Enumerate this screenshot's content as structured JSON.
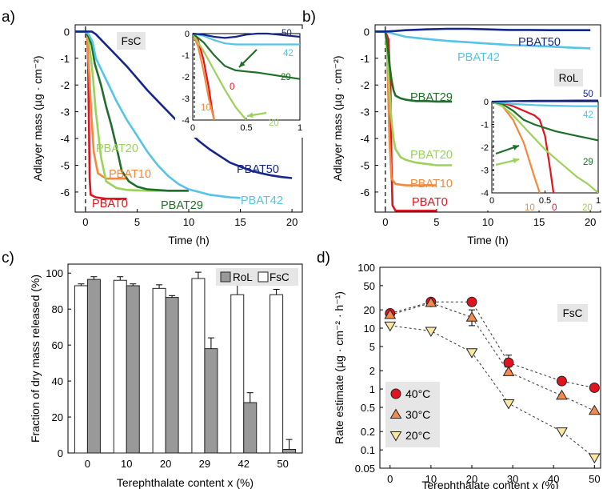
{
  "chart_data": [
    {
      "panel": "a)",
      "type": "line",
      "tag": "FsC",
      "xlabel": "Time (h)",
      "ylabel": "Adlayer mass (µg · cm⁻²)",
      "xlim": [
        -1,
        21
      ],
      "ylim": [
        -6.75,
        0.25
      ],
      "xticks": [
        0,
        5,
        10,
        15,
        20
      ],
      "yticks": [
        0,
        -1,
        -2,
        -3,
        -4,
        -5,
        -6
      ],
      "series": [
        {
          "name": "PBAT0",
          "label": "PBAT0",
          "color": "#e0141e",
          "x": [
            -1,
            0,
            0.15,
            0.25,
            0.32,
            0.4,
            0.5,
            1,
            2,
            3,
            4
          ],
          "y": [
            0,
            0,
            0,
            -1,
            -3,
            -5.5,
            -6.1,
            -6.2,
            -6.25,
            -6.25,
            -6.25
          ]
        },
        {
          "name": "PBAT10",
          "label": "PBAT10",
          "color": "#f5883a",
          "x": [
            -1,
            0,
            0.1,
            0.2,
            0.35,
            0.55,
            0.8,
            1.2,
            2,
            3,
            4
          ],
          "y": [
            0,
            0,
            0,
            -0.5,
            -1.5,
            -3,
            -4.5,
            -5.3,
            -5.5,
            -5.5,
            -5.5
          ]
        },
        {
          "name": "PBAT20",
          "label": "PBAT20",
          "color": "#9bd25a",
          "x": [
            -1,
            0,
            0.2,
            0.4,
            0.7,
            1,
            1.5,
            2,
            3,
            4,
            6,
            8,
            10
          ],
          "y": [
            0,
            0,
            -0.1,
            -0.6,
            -1.6,
            -3,
            -4.7,
            -5.6,
            -5.85,
            -5.92,
            -5.95,
            -5.95,
            -5.95
          ]
        },
        {
          "name": "PBAT29",
          "label": "PBAT29",
          "color": "#1f6e2a",
          "x": [
            -1,
            0,
            0.3,
            0.6,
            0.9,
            1.5,
            2,
            2.5,
            3,
            3.5,
            4.2,
            5,
            6,
            8,
            10
          ],
          "y": [
            0,
            0,
            -0.2,
            -0.5,
            -1.2,
            -2,
            -2.8,
            -3.5,
            -4.3,
            -5.2,
            -5.6,
            -5.8,
            -5.9,
            -5.95,
            -5.95
          ]
        },
        {
          "name": "PBAT42",
          "label": "PBAT42",
          "color": "#55c4e6",
          "x": [
            -1,
            0,
            0.3,
            0.7,
            1,
            2,
            3,
            4,
            5,
            6,
            7,
            8,
            9,
            10,
            11,
            12,
            13,
            14,
            15
          ],
          "y": [
            0,
            0,
            -0.1,
            -0.4,
            -1,
            -1.8,
            -2.6,
            -3.3,
            -3.9,
            -4.5,
            -5,
            -5.4,
            -5.7,
            -5.9,
            -6,
            -6.1,
            -6.15,
            -6.2,
            -6.22
          ]
        },
        {
          "name": "PBAT50",
          "label": "PBAT50",
          "color": "#15268a",
          "x": [
            -1,
            0,
            0.3,
            0.6,
            1,
            2,
            3,
            4,
            5,
            6,
            7,
            8,
            9,
            10,
            11,
            12,
            13,
            14,
            15,
            16,
            17,
            18,
            19,
            20
          ],
          "y": [
            0,
            0,
            0,
            0,
            -0.1,
            -0.5,
            -0.9,
            -1.3,
            -1.75,
            -2.2,
            -2.6,
            -3,
            -3.4,
            -3.75,
            -4.1,
            -4.4,
            -4.65,
            -4.9,
            -5.05,
            -5.2,
            -5.3,
            -5.38,
            -5.44,
            -5.48
          ]
        }
      ],
      "inset": {
        "xlim": [
          0,
          1
        ],
        "ylim": [
          -4,
          0
        ],
        "xticks": [
          "0",
          "0.5",
          "1"
        ],
        "yticks": [
          "0",
          "-1",
          "-2",
          "-3",
          "-4"
        ],
        "labels": [
          "0",
          "10",
          "20",
          "29",
          "42",
          "50"
        ],
        "series": [
          {
            "name": "PBAT0",
            "color": "#e0141e",
            "x": [
              0,
              0.05,
              0.1,
              0.15,
              0.18,
              0.2
            ],
            "y": [
              0,
              -0.3,
              -1.2,
              -2.5,
              -3.5,
              -4
            ]
          },
          {
            "name": "PBAT10",
            "color": "#f5883a",
            "x": [
              0,
              0.05,
              0.1,
              0.15,
              0.2
            ],
            "y": [
              0,
              -0.6,
              -1.7,
              -3,
              -4
            ]
          },
          {
            "name": "PBAT20",
            "color": "#9bd25a",
            "x": [
              0,
              0.1,
              0.2,
              0.3,
              0.4,
              0.5
            ],
            "y": [
              0,
              -0.8,
              -1.7,
              -2.6,
              -3.4,
              -4
            ]
          },
          {
            "name": "PBAT29",
            "color": "#1f6e2a",
            "x": [
              0,
              0.1,
              0.2,
              0.3,
              0.4,
              0.5,
              0.6,
              0.8,
              1
            ],
            "y": [
              0,
              -0.4,
              -1,
              -1.5,
              -1.7,
              -1.75,
              -1.8,
              -1.95,
              -2.1
            ]
          },
          {
            "name": "PBAT42",
            "color": "#55c4e6",
            "x": [
              0,
              0.1,
              0.2,
              0.3,
              0.4,
              0.6,
              0.8,
              1
            ],
            "y": [
              0,
              -0.1,
              -0.3,
              -0.45,
              -0.5,
              -0.5,
              -0.5,
              -0.5
            ]
          },
          {
            "name": "PBAT50",
            "color": "#15268a",
            "x": [
              0,
              0.1,
              0.2,
              0.3,
              0.4,
              0.5,
              0.6,
              0.7,
              0.8,
              0.9,
              1
            ],
            "y": [
              0,
              -0.05,
              -0.15,
              -0.2,
              -0.15,
              -0.05,
              0,
              0,
              -0.05,
              -0.1,
              -0.15
            ]
          }
        ]
      }
    },
    {
      "panel": "b)",
      "type": "line",
      "tag": "RoL",
      "xlabel": "Time (h)",
      "ylabel": "Adlayer mass (µg · cm⁻²)",
      "xlim": [
        -1,
        21
      ],
      "ylim": [
        -6.75,
        0.25
      ],
      "xticks": [
        0,
        5,
        10,
        15,
        20
      ],
      "yticks": [
        0,
        -1,
        -2,
        -3,
        -4,
        -5,
        -6
      ],
      "series": [
        {
          "name": "PBAT0",
          "label": "PBAT0",
          "color": "#e0141e",
          "x": [
            -1,
            0,
            0.3,
            0.5,
            0.6,
            0.7,
            1,
            2,
            3,
            4,
            5
          ],
          "y": [
            0,
            0,
            -0.3,
            -2,
            -5,
            -6.5,
            -6.7,
            -6.7,
            -6.7,
            -6.7,
            -6.7
          ]
        },
        {
          "name": "PBAT10",
          "label": "PBAT10",
          "color": "#f5883a",
          "x": [
            -1,
            0,
            0.15,
            0.25,
            0.4,
            0.6,
            1,
            2,
            3,
            4,
            5
          ],
          "y": [
            0,
            0,
            -0.4,
            -1.8,
            -4,
            -5.5,
            -5.7,
            -5.75,
            -5.75,
            -5.75,
            -5.75
          ]
        },
        {
          "name": "PBAT20",
          "label": "PBAT20",
          "color": "#9bd25a",
          "x": [
            -1,
            0,
            0.2,
            0.4,
            0.6,
            0.8,
            1,
            1.5,
            2,
            3,
            4,
            5,
            6,
            6.5
          ],
          "y": [
            0,
            0,
            -1,
            -2.2,
            -3.3,
            -4,
            -4.4,
            -4.7,
            -4.8,
            -4.9,
            -4.95,
            -5,
            -5,
            -5
          ]
        },
        {
          "name": "PBAT29",
          "label": "PBAT29",
          "color": "#1f6e2a",
          "x": [
            -1,
            0,
            0.2,
            0.4,
            0.6,
            0.8,
            1,
            1.5,
            2,
            3,
            4,
            5,
            6,
            6.5
          ],
          "y": [
            0,
            0,
            -0.5,
            -1.2,
            -1.8,
            -2.2,
            -2.4,
            -2.5,
            -2.55,
            -2.6,
            -2.6,
            -2.62,
            -2.62,
            -2.62
          ]
        },
        {
          "name": "PBAT42",
          "label": "PBAT42",
          "color": "#55c4e6",
          "x": [
            -1,
            0,
            1,
            2,
            4,
            6,
            8,
            10,
            12,
            14,
            16,
            18,
            20
          ],
          "y": [
            0,
            0,
            -0.1,
            -0.2,
            -0.28,
            -0.35,
            -0.4,
            -0.45,
            -0.5,
            -0.53,
            -0.56,
            -0.6,
            -0.63
          ]
        },
        {
          "name": "PBAT50",
          "label": "PBAT50",
          "color": "#15268a",
          "x": [
            -1,
            0,
            1,
            2,
            4,
            6,
            8,
            10,
            12,
            14,
            16,
            18,
            20
          ],
          "y": [
            0,
            0,
            0.02,
            0.05,
            0.08,
            0.1,
            0.1,
            0.08,
            0.06,
            0.06,
            0.05,
            0.05,
            0.05
          ]
        }
      ],
      "inset": {
        "xlim": [
          0,
          1
        ],
        "ylim": [
          -4,
          0
        ],
        "xticks": [
          "0",
          "0.5",
          "1"
        ],
        "yticks": [
          "0",
          "-1",
          "-2",
          "-3",
          "-4"
        ],
        "labels": [
          "0",
          "10",
          "20",
          "29",
          "42",
          "50"
        ],
        "series": [
          {
            "name": "PBAT0",
            "color": "#e0141e",
            "x": [
              0,
              0.1,
              0.2,
              0.3,
              0.4,
              0.45,
              0.5,
              0.55,
              0.58
            ],
            "y": [
              0,
              -0.05,
              -0.2,
              -0.4,
              -0.6,
              -0.8,
              -1.5,
              -3,
              -4
            ]
          },
          {
            "name": "PBAT10",
            "color": "#f5883a",
            "x": [
              0,
              0.1,
              0.2,
              0.3,
              0.4,
              0.45
            ],
            "y": [
              0,
              -0.2,
              -0.8,
              -1.8,
              -3.3,
              -4
            ]
          },
          {
            "name": "PBAT20",
            "color": "#9bd25a",
            "x": [
              0,
              0.1,
              0.2,
              0.3,
              0.4,
              0.5,
              0.6,
              0.7,
              0.8,
              0.9,
              1
            ],
            "y": [
              0,
              -0.2,
              -0.6,
              -1.1,
              -1.6,
              -2.1,
              -2.5,
              -2.9,
              -3.3,
              -3.6,
              -4
            ]
          },
          {
            "name": "PBAT29",
            "color": "#1f6e2a",
            "x": [
              0,
              0.1,
              0.2,
              0.3,
              0.4,
              0.5,
              0.6,
              0.7,
              0.8,
              0.9,
              1
            ],
            "y": [
              0,
              -0.1,
              -0.4,
              -0.8,
              -1,
              -1.15,
              -1.3,
              -1.4,
              -1.5,
              -1.6,
              -1.7
            ]
          },
          {
            "name": "PBAT42",
            "color": "#55c4e6",
            "x": [
              0,
              0.2,
              0.4,
              0.6,
              0.8,
              1
            ],
            "y": [
              0,
              -0.1,
              -0.15,
              -0.18,
              -0.2,
              -0.2
            ]
          },
          {
            "name": "PBAT50",
            "color": "#15268a",
            "x": [
              0,
              0.2,
              0.4,
              0.6,
              0.8,
              1
            ],
            "y": [
              0,
              0.02,
              0.04,
              0.04,
              0.05,
              0.05
            ]
          }
        ]
      }
    },
    {
      "panel": "c)",
      "type": "bar",
      "xlabel": "Terephthalate content x (%)",
      "ylabel": "Fraction of dry mass released (%)",
      "ylim": [
        0,
        105
      ],
      "yticks": [
        0,
        20,
        40,
        60,
        80,
        100
      ],
      "categories": [
        "0",
        "10",
        "20",
        "29",
        "42",
        "50"
      ],
      "legend": [
        "RoL",
        "FsC"
      ],
      "series": [
        {
          "name": "FsC",
          "color": "#ffffff",
          "values": [
            93,
            96,
            91.5,
            97,
            88,
            88
          ],
          "errors": [
            1,
            2,
            2,
            3.5,
            8,
            3
          ]
        },
        {
          "name": "RoL",
          "color": "#999999",
          "values": [
            96.5,
            93,
            86.5,
            58,
            28,
            2
          ],
          "errors": [
            1.5,
            1,
            1,
            6,
            5.5,
            5.5
          ]
        }
      ]
    },
    {
      "panel": "d)",
      "type": "scatter",
      "tag": "FsC",
      "xlabel": "Terephthalate content x (%)",
      "ylabel": "Rate estimate (µg · cm⁻² · h⁻¹)",
      "yscale": "log",
      "ylim": [
        0.05,
        100
      ],
      "xticks": [
        0,
        10,
        20,
        30,
        40,
        50
      ],
      "yticks": [
        "100",
        "50",
        "20",
        "10",
        "5",
        "2",
        "1",
        "0.5",
        "0.2",
        "0.1",
        "0.05"
      ],
      "x": [
        0,
        10,
        20,
        29,
        42,
        50
      ],
      "series": [
        {
          "name": "40°C",
          "label": "40°C",
          "marker": "circle",
          "color": "#e0141e",
          "values": [
            17.5,
            27,
            27,
            2.7,
            1.35,
            1.05
          ]
        },
        {
          "name": "30°C",
          "label": "30°C",
          "marker": "triangle-up",
          "color": "#f28c4e",
          "values": [
            16.5,
            26,
            15,
            1.9,
            0.78,
            0.44
          ]
        },
        {
          "name": "20°C",
          "label": "20°C",
          "marker": "triangle-down",
          "color": "#fae7a2",
          "values": [
            11,
            9,
            4,
            0.58,
            0.2,
            0.075
          ]
        }
      ],
      "errors": [
        {
          "series": "30°C",
          "index": 2,
          "err": [
            11,
            20
          ]
        },
        {
          "series": "40°C",
          "index": 3,
          "err": [
            2,
            3.6
          ]
        }
      ]
    }
  ]
}
